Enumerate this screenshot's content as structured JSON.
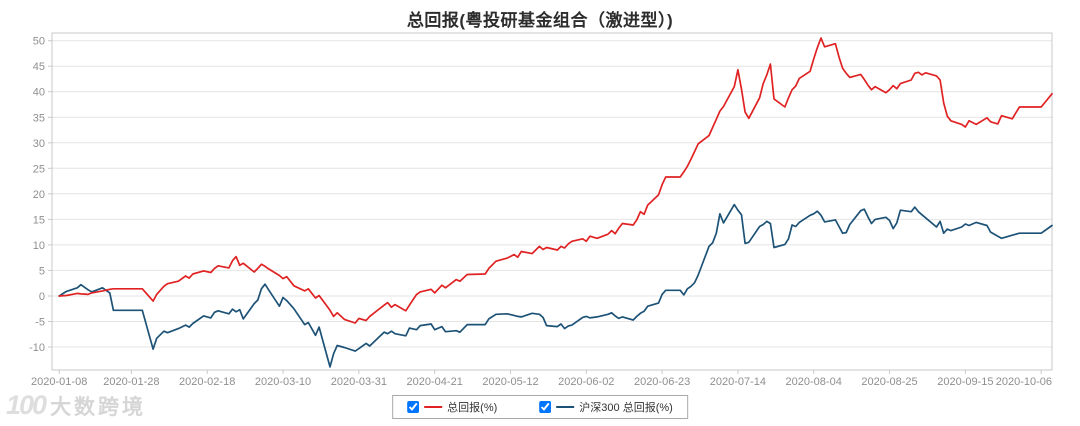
{
  "title": "总回报(粤投研基金组合（激进型）)",
  "watermark": {
    "logo": "100",
    "text": "大数跨境"
  },
  "legend": [
    {
      "label": "总回报(%)",
      "color": "#e02222",
      "checked": true
    },
    {
      "label": "沪深300 总回报(%)",
      "color": "#1d5277",
      "checked": true
    }
  ],
  "chart_data": {
    "type": "line",
    "title": "总回报(粤投研基金组合（激进型）)",
    "xlabel": "",
    "ylabel": "",
    "grid": "horizontal",
    "legend_position": "bottom",
    "ylim": [
      -14.5,
      51.5
    ],
    "yticks": [
      -10,
      -5,
      0,
      5,
      10,
      15,
      20,
      25,
      30,
      35,
      40,
      45,
      50
    ],
    "x_domain": [
      "2020-01-06",
      "2020-10-09"
    ],
    "xticks": [
      "2020-01-08",
      "2020-01-28",
      "2020-02-18",
      "2020-03-10",
      "2020-03-31",
      "2020-04-21",
      "2020-05-12",
      "2020-06-02",
      "2020-06-23",
      "2020-07-14",
      "2020-08-04",
      "2020-08-25",
      "2020-09-15",
      "2020-10-06"
    ],
    "x": [
      "2020-01-08",
      "2020-01-10",
      "2020-01-13",
      "2020-01-14",
      "2020-01-16",
      "2020-01-17",
      "2020-01-20",
      "2020-01-22",
      "2020-01-23",
      "2020-01-31",
      "2020-02-03",
      "2020-02-04",
      "2020-02-06",
      "2020-02-07",
      "2020-02-10",
      "2020-02-12",
      "2020-02-13",
      "2020-02-14",
      "2020-02-17",
      "2020-02-19",
      "2020-02-20",
      "2020-02-21",
      "2020-02-24",
      "2020-02-25",
      "2020-02-26",
      "2020-02-27",
      "2020-02-28",
      "2020-03-02",
      "2020-03-03",
      "2020-03-04",
      "2020-03-05",
      "2020-03-06",
      "2020-03-09",
      "2020-03-10",
      "2020-03-11",
      "2020-03-13",
      "2020-03-16",
      "2020-03-17",
      "2020-03-19",
      "2020-03-20",
      "2020-03-23",
      "2020-03-24",
      "2020-03-25",
      "2020-03-27",
      "2020-03-30",
      "2020-03-31",
      "2020-04-02",
      "2020-04-03",
      "2020-04-07",
      "2020-04-08",
      "2020-04-09",
      "2020-04-10",
      "2020-04-13",
      "2020-04-14",
      "2020-04-16",
      "2020-04-17",
      "2020-04-20",
      "2020-04-21",
      "2020-04-23",
      "2020-04-24",
      "2020-04-27",
      "2020-04-28",
      "2020-04-30",
      "2020-05-05",
      "2020-05-06",
      "2020-05-08",
      "2020-05-11",
      "2020-05-13",
      "2020-05-14",
      "2020-05-15",
      "2020-05-18",
      "2020-05-20",
      "2020-05-21",
      "2020-05-22",
      "2020-05-25",
      "2020-05-26",
      "2020-05-27",
      "2020-05-28",
      "2020-05-29",
      "2020-06-01",
      "2020-06-02",
      "2020-06-03",
      "2020-06-05",
      "2020-06-08",
      "2020-06-09",
      "2020-06-10",
      "2020-06-11",
      "2020-06-12",
      "2020-06-15",
      "2020-06-16",
      "2020-06-17",
      "2020-06-18",
      "2020-06-19",
      "2020-06-22",
      "2020-06-23",
      "2020-06-24",
      "2020-06-28",
      "2020-06-29",
      "2020-06-30",
      "2020-07-01",
      "2020-07-02",
      "2020-07-03",
      "2020-07-06",
      "2020-07-07",
      "2020-07-08",
      "2020-07-09",
      "2020-07-10",
      "2020-07-13",
      "2020-07-14",
      "2020-07-15",
      "2020-07-16",
      "2020-07-17",
      "2020-07-20",
      "2020-07-21",
      "2020-07-22",
      "2020-07-23",
      "2020-07-24",
      "2020-07-27",
      "2020-07-28",
      "2020-07-29",
      "2020-07-30",
      "2020-07-31",
      "2020-08-03",
      "2020-08-04",
      "2020-08-05",
      "2020-08-06",
      "2020-08-07",
      "2020-08-10",
      "2020-08-11",
      "2020-08-12",
      "2020-08-13",
      "2020-08-14",
      "2020-08-17",
      "2020-08-18",
      "2020-08-19",
      "2020-08-20",
      "2020-08-21",
      "2020-08-24",
      "2020-08-25",
      "2020-08-26",
      "2020-08-27",
      "2020-08-28",
      "2020-08-31",
      "2020-09-01",
      "2020-09-02",
      "2020-09-03",
      "2020-09-04",
      "2020-09-07",
      "2020-09-08",
      "2020-09-09",
      "2020-09-10",
      "2020-09-11",
      "2020-09-14",
      "2020-09-15",
      "2020-09-16",
      "2020-09-18",
      "2020-09-21",
      "2020-09-22",
      "2020-09-24",
      "2020-09-25",
      "2020-09-28",
      "2020-09-29",
      "2020-09-30",
      "2020-10-06",
      "2020-10-09"
    ],
    "series": [
      {
        "name": "总回报(%)",
        "color": "#e02222",
        "values": [
          0.0,
          0.1,
          0.5,
          0.4,
          0.3,
          0.6,
          1.0,
          1.3,
          1.4,
          1.4,
          -1.0,
          0.3,
          1.9,
          2.4,
          2.9,
          3.9,
          3.5,
          4.3,
          4.9,
          4.6,
          5.4,
          5.9,
          5.5,
          6.9,
          7.7,
          6.0,
          6.4,
          4.7,
          5.4,
          6.2,
          5.8,
          5.3,
          4.0,
          3.4,
          3.8,
          2.0,
          1.0,
          1.4,
          -0.4,
          0.1,
          -2.8,
          -4.0,
          -3.3,
          -4.6,
          -5.3,
          -4.4,
          -4.8,
          -4.0,
          -1.8,
          -1.3,
          -2.2,
          -1.7,
          -2.9,
          -1.8,
          0.3,
          0.8,
          1.3,
          0.6,
          2.1,
          1.6,
          3.2,
          2.9,
          4.2,
          4.3,
          5.4,
          6.8,
          7.4,
          8.1,
          7.6,
          8.7,
          8.3,
          9.7,
          9.1,
          9.5,
          9.0,
          9.7,
          9.4,
          10.2,
          10.7,
          11.2,
          10.7,
          11.7,
          11.3,
          12.1,
          12.8,
          12.2,
          13.3,
          14.2,
          13.9,
          14.9,
          16.5,
          16.0,
          17.8,
          19.8,
          21.8,
          23.3,
          23.3,
          24.3,
          25.4,
          26.8,
          28.3,
          29.8,
          31.4,
          33.0,
          34.6,
          36.2,
          37.1,
          41.0,
          44.3,
          40.5,
          36.0,
          34.8,
          38.8,
          41.6,
          43.3,
          45.4,
          38.6,
          37.0,
          38.8,
          40.4,
          41.1,
          42.6,
          44.0,
          46.4,
          48.6,
          50.5,
          48.8,
          49.4,
          46.8,
          44.6,
          43.6,
          42.8,
          43.4,
          42.4,
          41.3,
          40.4,
          41.0,
          39.8,
          40.4,
          41.2,
          40.6,
          41.6,
          42.3,
          43.6,
          43.8,
          43.3,
          43.7,
          43.1,
          42.3,
          37.8,
          35.2,
          34.3,
          33.6,
          33.1,
          34.3,
          33.6,
          34.9,
          34.1,
          33.7,
          35.3,
          34.7,
          35.9,
          37.0,
          37.0,
          39.6
        ]
      },
      {
        "name": "沪深300 总回报(%)",
        "color": "#1d5277",
        "values": [
          0.0,
          0.9,
          1.6,
          2.2,
          1.2,
          0.8,
          1.6,
          0.6,
          -2.8,
          -2.8,
          -10.4,
          -8.3,
          -6.9,
          -7.2,
          -6.4,
          -5.7,
          -6.1,
          -5.4,
          -3.9,
          -4.3,
          -3.2,
          -2.9,
          -3.5,
          -2.6,
          -3.1,
          -2.7,
          -4.5,
          -1.5,
          -0.8,
          1.4,
          2.3,
          1.2,
          -2.0,
          -0.3,
          -0.9,
          -2.5,
          -5.6,
          -5.2,
          -7.7,
          -6.1,
          -13.9,
          -11.3,
          -9.7,
          -10.1,
          -10.8,
          -10.3,
          -9.3,
          -9.8,
          -7.1,
          -7.4,
          -6.9,
          -7.4,
          -7.8,
          -6.3,
          -6.6,
          -5.8,
          -5.5,
          -6.6,
          -6.0,
          -7.0,
          -6.8,
          -7.1,
          -5.6,
          -5.6,
          -4.5,
          -3.6,
          -3.5,
          -3.8,
          -4.0,
          -4.1,
          -3.4,
          -3.6,
          -4.2,
          -5.8,
          -6.0,
          -5.5,
          -6.4,
          -5.9,
          -5.7,
          -4.2,
          -4.0,
          -4.3,
          -4.1,
          -3.6,
          -3.3,
          -3.9,
          -4.4,
          -4.1,
          -4.7,
          -4.0,
          -3.4,
          -3.0,
          -2.0,
          -1.4,
          0.3,
          1.1,
          1.1,
          0.2,
          1.4,
          1.9,
          2.6,
          4.1,
          9.7,
          10.4,
          12.3,
          16.1,
          14.3,
          17.9,
          16.8,
          15.9,
          10.3,
          10.5,
          13.6,
          14.0,
          14.6,
          14.2,
          9.5,
          10.1,
          11.2,
          13.9,
          13.6,
          14.4,
          15.8,
          16.1,
          16.6,
          15.8,
          14.5,
          14.9,
          13.6,
          12.3,
          12.4,
          14.0,
          16.7,
          17.0,
          15.5,
          14.2,
          15.0,
          15.4,
          14.8,
          13.2,
          14.3,
          16.8,
          16.5,
          17.4,
          16.5,
          15.9,
          15.3,
          13.5,
          14.6,
          12.3,
          13.1,
          12.8,
          13.5,
          14.1,
          13.8,
          14.4,
          13.8,
          12.5,
          11.7,
          11.3,
          11.9,
          12.1,
          12.3,
          12.3,
          13.8
        ]
      }
    ]
  }
}
